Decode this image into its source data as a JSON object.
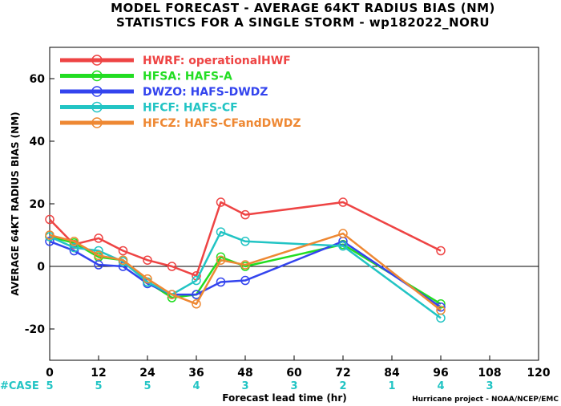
{
  "chart_data": {
    "type": "line",
    "title": "MODEL FORECAST - AVERAGE 64KT RADIUS BIAS (NM)",
    "subtitle": "STATISTICS FOR A SINGLE STORM - wp182022_NORU",
    "xlabel": "Forecast lead time (hr)",
    "ylabel": "AVERAGE 64KT RADIUS BIAS (NM)",
    "xlim": [
      0,
      120
    ],
    "ylim": [
      -30,
      70
    ],
    "xticks": [
      0,
      12,
      24,
      36,
      48,
      60,
      72,
      84,
      96,
      108,
      120
    ],
    "yticks": [
      -20,
      0,
      20,
      40,
      60
    ],
    "legend_position": "top-left",
    "zero_line": true,
    "series": [
      {
        "name": "HWRF: operationalHWF",
        "color": "#ee4444",
        "x": [
          0,
          6,
          12,
          18,
          24,
          30,
          36,
          42,
          48,
          72,
          96
        ],
        "y": [
          15,
          7,
          9,
          5,
          2,
          0,
          -3,
          20.5,
          16.5,
          20.5,
          5
        ]
      },
      {
        "name": "HFSA: HAFS-A",
        "color": "#22dd22",
        "x": [
          0,
          6,
          12,
          18,
          24,
          30,
          36,
          42,
          48,
          72,
          96
        ],
        "y": [
          9.5,
          7.5,
          3,
          2,
          -5,
          -10,
          -9,
          3,
          0,
          7,
          -12
        ]
      },
      {
        "name": "DWZO: HAFS-DWDZ",
        "color": "#3344ee",
        "x": [
          0,
          6,
          12,
          18,
          24,
          30,
          36,
          42,
          48,
          72,
          96
        ],
        "y": [
          8,
          5,
          0.5,
          0,
          -5.5,
          -9,
          -9,
          -5,
          -4.5,
          8,
          -13
        ]
      },
      {
        "name": "HFCF: HAFS-CF",
        "color": "#22c4c4",
        "x": [
          0,
          6,
          12,
          18,
          24,
          30,
          36,
          42,
          48,
          72,
          96
        ],
        "y": [
          9.5,
          6,
          5,
          1.5,
          -5,
          -9,
          -4.5,
          11,
          8,
          6.5,
          -16.5
        ]
      },
      {
        "name": "HFCZ: HAFS-CFandDWDZ",
        "color": "#ee8833",
        "x": [
          0,
          6,
          12,
          18,
          24,
          30,
          36,
          42,
          48,
          72,
          96
        ],
        "y": [
          10,
          8,
          3.5,
          2,
          -4,
          -9,
          -12,
          2,
          0.5,
          10.5,
          -14
        ]
      }
    ],
    "case_label": "#CASE",
    "cases": [
      {
        "x": 0,
        "n": "5"
      },
      {
        "x": 12,
        "n": "5"
      },
      {
        "x": 24,
        "n": "5"
      },
      {
        "x": 36,
        "n": "4"
      },
      {
        "x": 48,
        "n": "3"
      },
      {
        "x": 60,
        "n": "3"
      },
      {
        "x": 72,
        "n": "2"
      },
      {
        "x": 84,
        "n": "1"
      },
      {
        "x": 96,
        "n": "4"
      },
      {
        "x": 108,
        "n": "3"
      }
    ],
    "credit": "Hurricane project - NOAA/NCEP/EMC"
  }
}
